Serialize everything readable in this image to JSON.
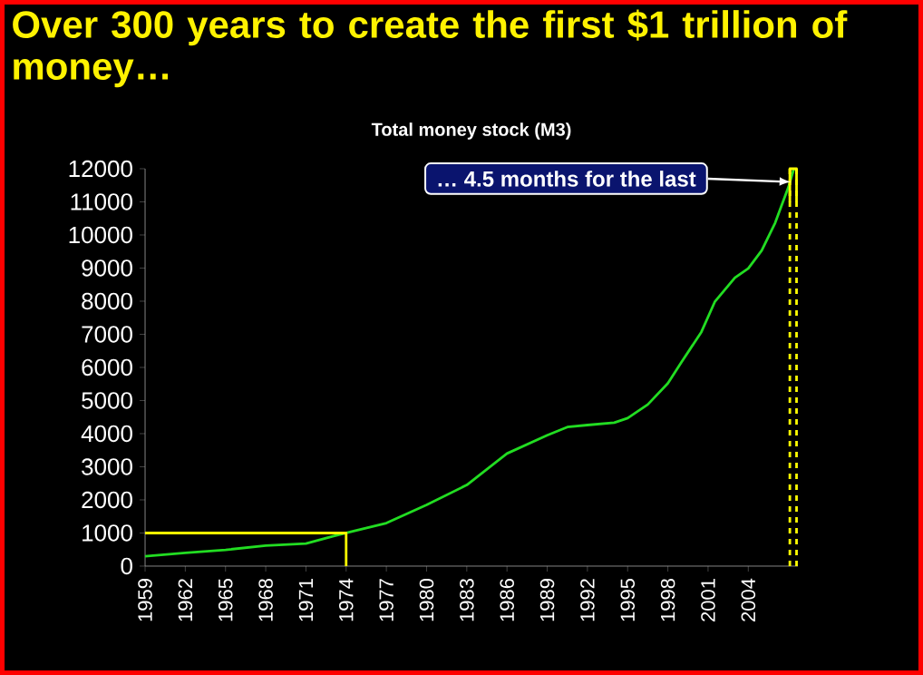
{
  "chart_data": {
    "type": "line",
    "title": "Over 300 years to create the first $1 trillion of money…",
    "subtitle": "Total money stock (M3)",
    "xlim": [
      1959,
      2007.7
    ],
    "xticks": [
      1959,
      1962,
      1965,
      1968,
      1971,
      1974,
      1977,
      1980,
      1983,
      1986,
      1989,
      1992,
      1995,
      1998,
      2001,
      2004
    ],
    "ylim": [
      0,
      12000
    ],
    "yticks": [
      0,
      1000,
      2000,
      3000,
      4000,
      5000,
      6000,
      7000,
      8000,
      9000,
      10000,
      11000,
      12000
    ],
    "grid": false,
    "marker": "none",
    "ref_lines": [
      {
        "axis": "x",
        "value": 2007.1,
        "color": "#ffff00",
        "line_style": "dashed"
      },
      {
        "axis": "x",
        "value": 2007.6,
        "color": "#ffff00",
        "line_style": "dashed"
      }
    ],
    "series": [
      {
        "color": "#22dd22",
        "line_style": "solid",
        "x": [
          1959,
          1962,
          1965,
          1968,
          1971,
          1973,
          1974,
          1977,
          1980,
          1983,
          1986,
          1989,
          1990.5,
          1992,
          1994,
          1995,
          1996.5,
          1998,
          1999,
          2000.5,
          2001.5,
          2003,
          2004,
          2005,
          2006,
          2007,
          2007.4
        ],
        "values": [
          300,
          400,
          490,
          620,
          680,
          900,
          1000,
          1300,
          1850,
          2450,
          3400,
          3950,
          4200,
          4260,
          4330,
          4470,
          4880,
          5520,
          6150,
          7070,
          7980,
          8710,
          8990,
          9530,
          10360,
          11450,
          12000
        ]
      },
      {
        "color": "#ffff00",
        "line_style": "solid",
        "x": [
          1959,
          1974,
          1974
        ],
        "values": [
          1000,
          1000,
          0
        ]
      },
      {
        "color": "#ffff00",
        "line_style": "solid",
        "x": [
          2007.1,
          2007.1,
          2007.6,
          2007.6
        ],
        "values": [
          11000,
          12000,
          12000,
          11000
        ]
      }
    ],
    "annotations": [
      {
        "text": "… 4.5  months for the last",
        "x": 2007.2,
        "y": 11600
      }
    ]
  }
}
